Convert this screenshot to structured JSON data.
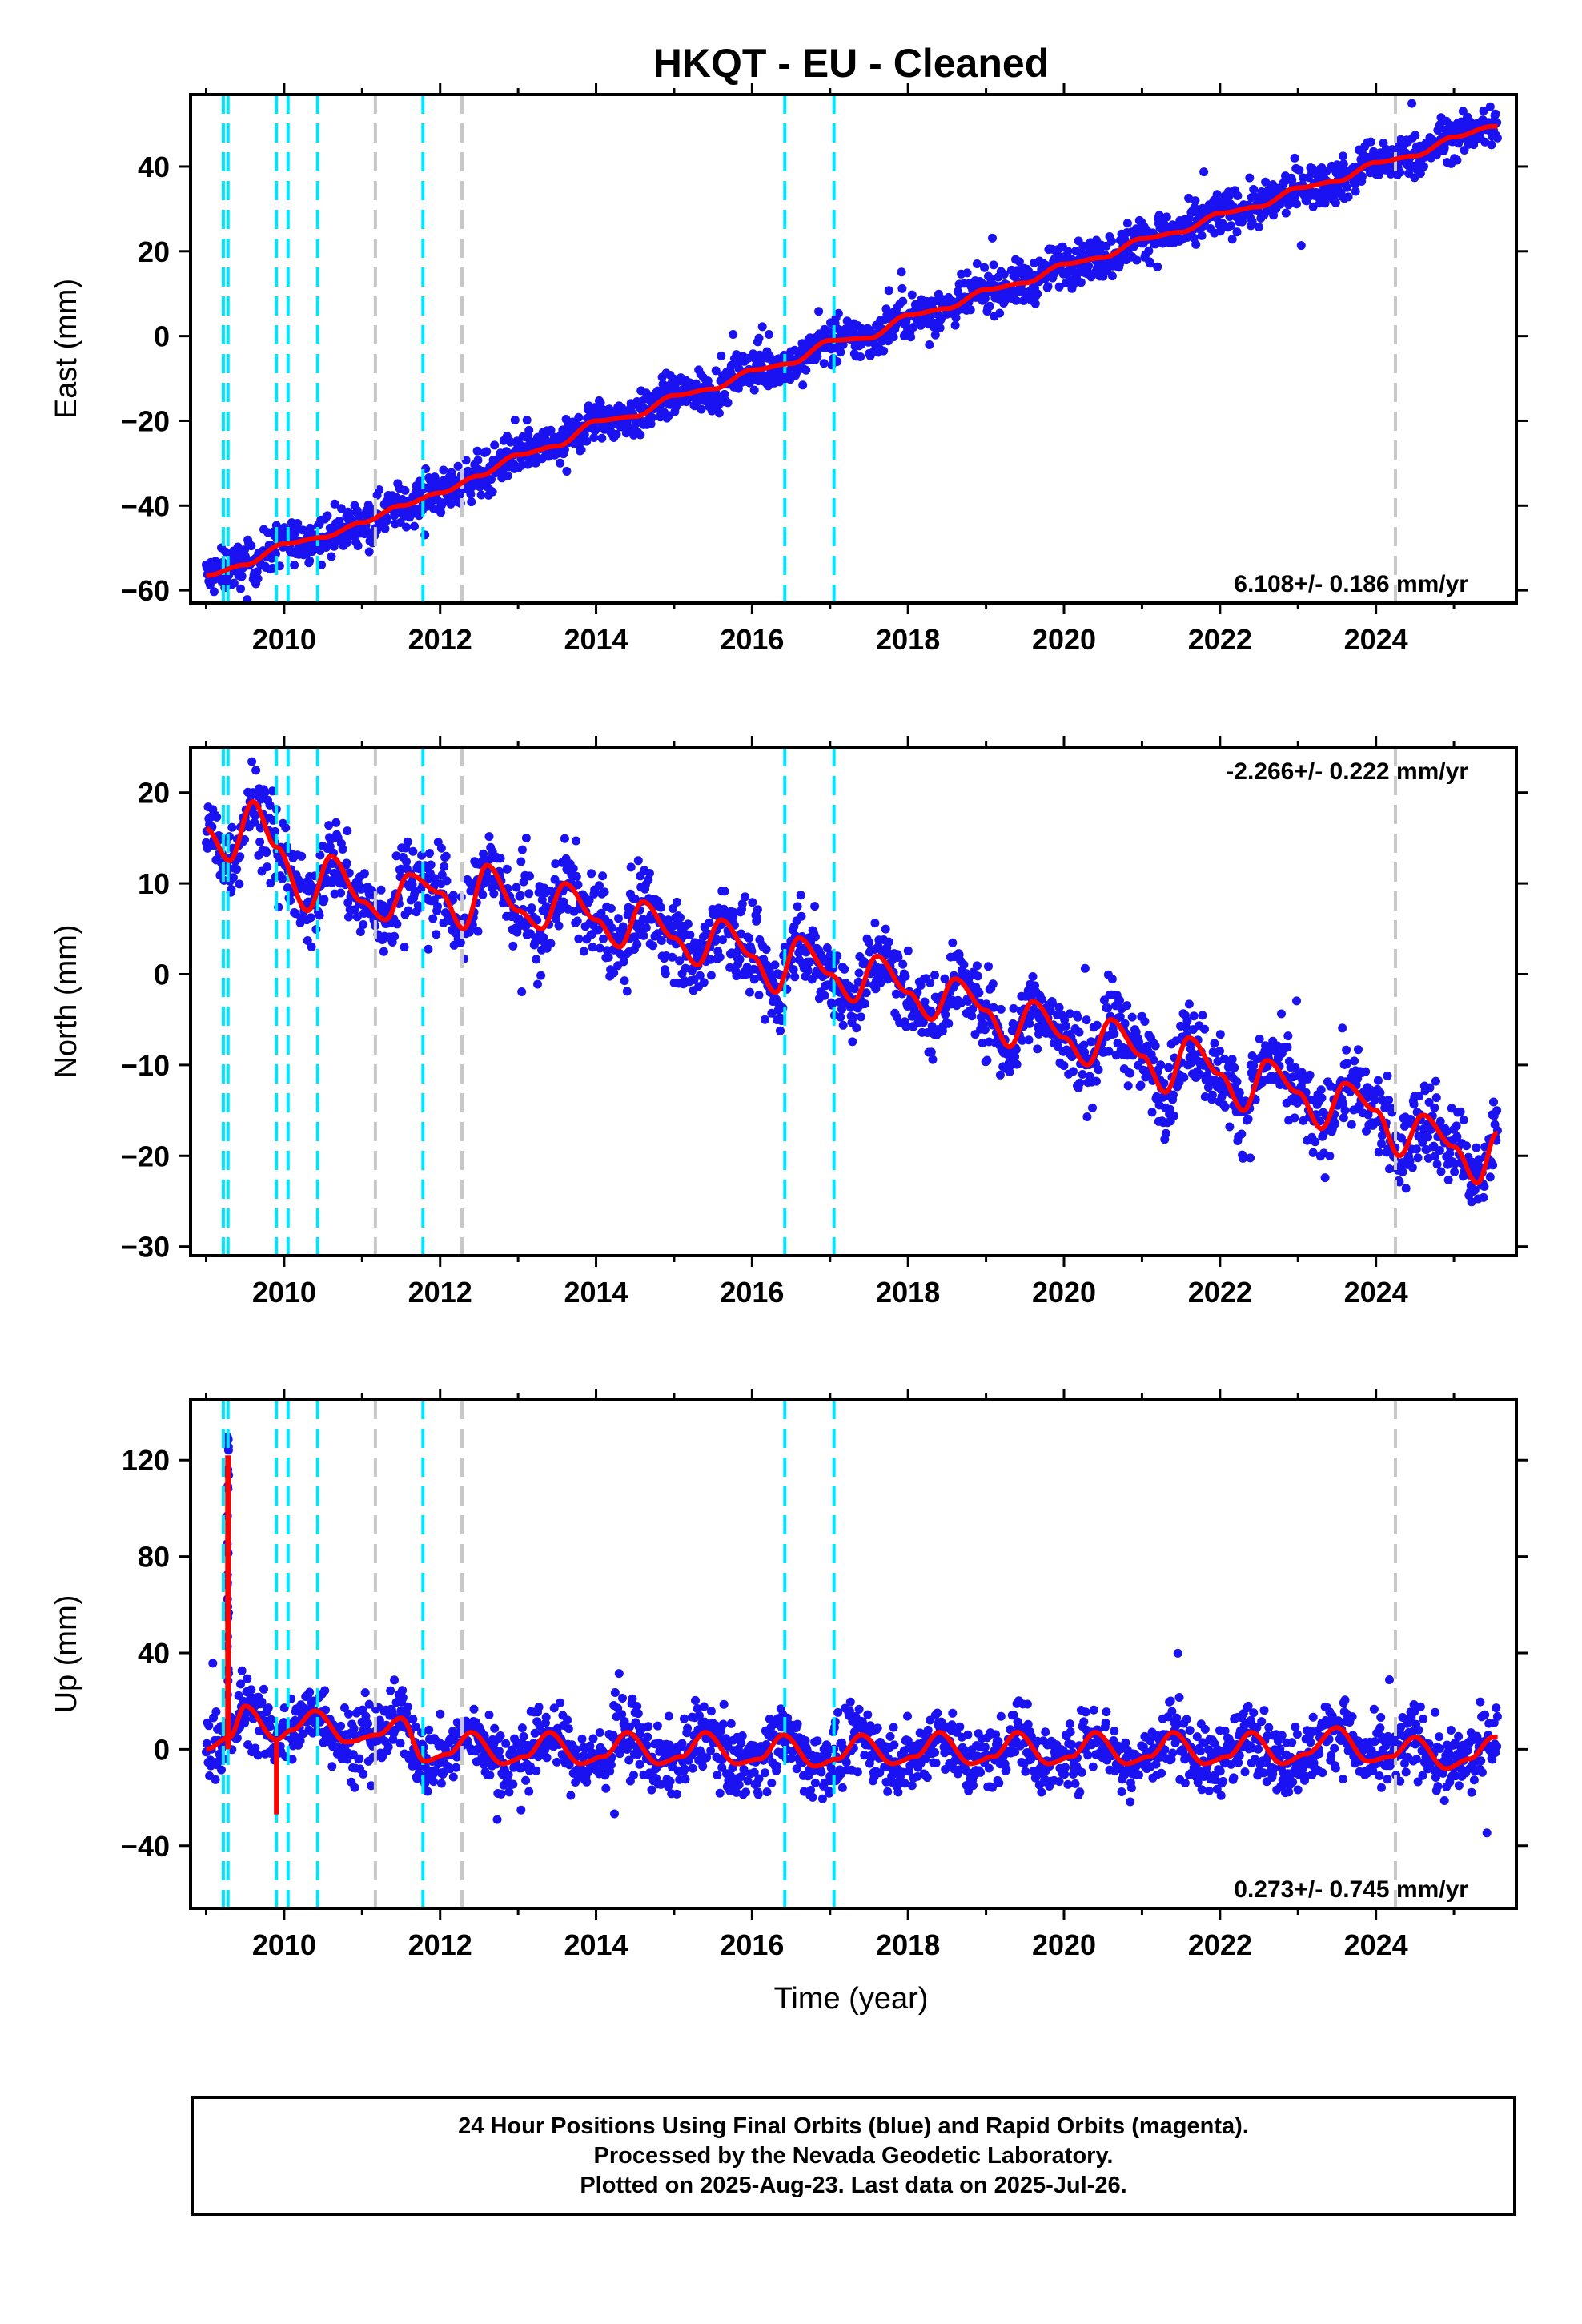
{
  "title": "HKQT  - EU - Cleaned",
  "xlabel": "Time (year)",
  "colors": {
    "points": "#1a12f0",
    "model": "#ff0000",
    "break_equipment": "#00e5ff",
    "break_other": "#c8c8c8",
    "frame": "#000000"
  },
  "footer": {
    "line1": "24 Hour Positions Using Final Orbits (blue) and Rapid Orbits (magenta).",
    "line2": "Processed by the Nevada Geodetic Laboratory.",
    "line3": "Plotted on 2025-Aug-23. Last data on 2025-Jul-26."
  },
  "chart_data": [
    {
      "type": "scatter",
      "component": "East",
      "ylabel": "East (mm)",
      "xlim": [
        2008.8,
        2025.8
      ],
      "ylim": [
        -63,
        57
      ],
      "xticks": [
        2010,
        2012,
        2014,
        2016,
        2018,
        2020,
        2022,
        2024
      ],
      "yticks": [
        -60,
        -40,
        -20,
        0,
        20,
        40
      ],
      "rate_label": "6.108+/- 0.186 mm/yr",
      "rate_position": "bottom-right",
      "model": {
        "x": [
          2009.0,
          2009.5,
          2010.0,
          2010.5,
          2011.0,
          2011.5,
          2012.0,
          2012.5,
          2013.0,
          2013.5,
          2014.0,
          2014.5,
          2015.0,
          2015.5,
          2016.0,
          2016.5,
          2017.0,
          2017.5,
          2018.0,
          2018.5,
          2019.0,
          2019.5,
          2020.0,
          2020.5,
          2021.0,
          2021.5,
          2022.0,
          2022.5,
          2023.0,
          2023.5,
          2024.0,
          2024.5,
          2025.0,
          2025.5
        ],
        "y": [
          -56.5,
          -54,
          -49,
          -47.5,
          -44,
          -40,
          -37,
          -33,
          -28,
          -26,
          -20,
          -19,
          -14,
          -12.5,
          -8,
          -6.5,
          -1,
          -0.5,
          5,
          6.5,
          11,
          12.5,
          17,
          18.5,
          23,
          24.5,
          29,
          30.5,
          35,
          36.5,
          41,
          42.5,
          47,
          49.5
        ]
      },
      "scatter_spread_mm": 2.5
    },
    {
      "type": "scatter",
      "component": "North",
      "ylabel": "North (mm)",
      "xlim": [
        2008.8,
        2025.8
      ],
      "ylim": [
        -31,
        25
      ],
      "xticks": [
        2010,
        2012,
        2014,
        2016,
        2018,
        2020,
        2022,
        2024
      ],
      "yticks": [
        -30,
        -20,
        -10,
        0,
        10,
        20
      ],
      "rate_label": "-2.266+/- 0.222 mm/yr",
      "rate_position": "top-right",
      "model": {
        "x": [
          2009.0,
          2009.3,
          2009.6,
          2009.9,
          2010.3,
          2010.6,
          2011.0,
          2011.3,
          2011.6,
          2012.0,
          2012.3,
          2012.6,
          2013.0,
          2013.3,
          2013.6,
          2014.0,
          2014.3,
          2014.6,
          2015.0,
          2015.3,
          2015.6,
          2016.0,
          2016.3,
          2016.6,
          2017.0,
          2017.3,
          2017.6,
          2018.0,
          2018.3,
          2018.6,
          2019.0,
          2019.3,
          2019.6,
          2020.0,
          2020.3,
          2020.6,
          2021.0,
          2021.3,
          2021.6,
          2022.0,
          2022.3,
          2022.6,
          2023.0,
          2023.3,
          2023.6,
          2024.0,
          2024.3,
          2024.6,
          2025.0,
          2025.3,
          2025.55
        ],
        "y": [
          16,
          12.5,
          19,
          14,
          7,
          13,
          8,
          6,
          11,
          9,
          5,
          12,
          7,
          5,
          10,
          6,
          3,
          8,
          4,
          1,
          6,
          2,
          -2,
          4,
          0,
          -3,
          2,
          -2,
          -5,
          -0.5,
          -4,
          -8,
          -3,
          -7,
          -10,
          -5,
          -9,
          -13,
          -7,
          -11,
          -15,
          -9.5,
          -13,
          -17,
          -12,
          -15,
          -20,
          -15.5,
          -19,
          -23,
          -17.5
        ]
      },
      "scatter_spread_mm": 2.2
    },
    {
      "type": "scatter",
      "component": "Up",
      "ylabel": "Up (mm)",
      "xlim": [
        2008.8,
        2025.8
      ],
      "ylim": [
        -66,
        145
      ],
      "xticks": [
        2010,
        2012,
        2014,
        2016,
        2018,
        2020,
        2022,
        2024
      ],
      "yticks": [
        -40,
        0,
        40,
        80,
        120
      ],
      "rate_label": "0.273+/- 0.745 mm/yr",
      "rate_position": "bottom-right",
      "model": {
        "x": [
          2009.0,
          2009.3,
          2009.5,
          2009.9,
          2010.1,
          2010.4,
          2010.8,
          2011.2,
          2011.5,
          2011.8,
          2012.1,
          2012.4,
          2012.8,
          2013.1,
          2013.4,
          2013.8,
          2014.1,
          2014.4,
          2014.8,
          2015.1,
          2015.4,
          2015.8,
          2016.1,
          2016.4,
          2016.8,
          2017.1,
          2017.4,
          2017.8,
          2018.1,
          2018.4,
          2018.8,
          2019.1,
          2019.4,
          2019.8,
          2020.1,
          2020.4,
          2020.8,
          2021.1,
          2021.4,
          2021.8,
          2022.1,
          2022.4,
          2022.8,
          2023.1,
          2023.5,
          2023.9,
          2024.2,
          2024.5,
          2024.9,
          2025.2,
          2025.5
        ],
        "y": [
          0,
          5,
          18,
          4,
          8,
          16,
          3,
          6,
          13,
          -5,
          -2,
          7,
          -6,
          -3,
          7,
          -6,
          -3,
          7,
          -6,
          -3,
          7,
          -6,
          -4,
          6,
          -7,
          -4,
          6,
          -6,
          -3,
          7,
          -6,
          -3,
          7,
          -6,
          -3,
          7,
          -6,
          -3,
          7,
          -6,
          -3,
          7,
          -6,
          -2,
          9,
          -5,
          -3,
          5,
          -8,
          -4,
          5
        ]
      },
      "outlier_spike": {
        "x": 2009.28,
        "y_top": 122
      },
      "outlier_drop": {
        "x": 2009.9,
        "y_bottom": -27
      },
      "scatter_spread_mm": 7
    }
  ],
  "breaks": [
    {
      "x": 2009.22,
      "kind": "equipment"
    },
    {
      "x": 2009.28,
      "kind": "equipment"
    },
    {
      "x": 2009.9,
      "kind": "equipment"
    },
    {
      "x": 2010.05,
      "kind": "equipment"
    },
    {
      "x": 2010.43,
      "kind": "equipment"
    },
    {
      "x": 2011.17,
      "kind": "other"
    },
    {
      "x": 2011.78,
      "kind": "equipment"
    },
    {
      "x": 2012.28,
      "kind": "other"
    },
    {
      "x": 2016.42,
      "kind": "equipment"
    },
    {
      "x": 2017.05,
      "kind": "equipment"
    },
    {
      "x": 2024.25,
      "kind": "other"
    }
  ]
}
